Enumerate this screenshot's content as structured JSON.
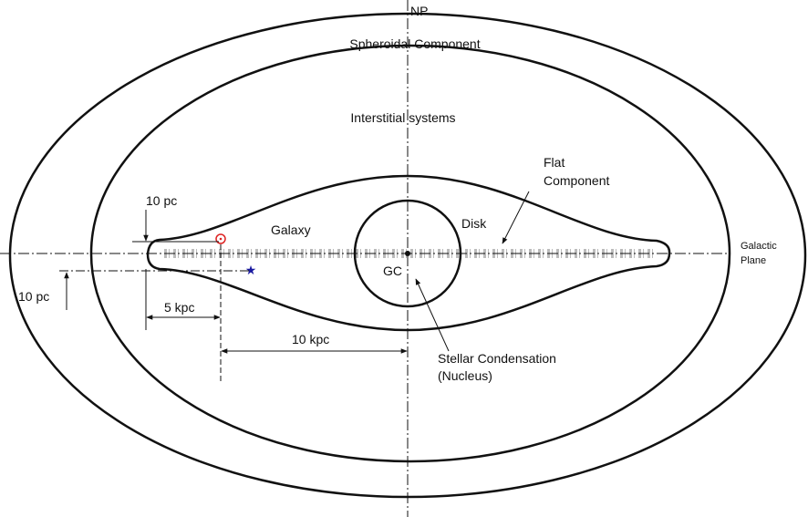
{
  "labels": {
    "np": "NP",
    "spheroidal": "Spheroidal Component",
    "interstitial": "Interstitial systems",
    "flat": [
      "Flat",
      "Component"
    ],
    "galaxy": "Galaxy",
    "disk": "Disk",
    "gc": "GC",
    "pc_upper": "10 pc",
    "pc_lower": "10 pc",
    "kpc5": "5 kpc",
    "kpc10": "10 kpc",
    "nucleus": [
      "Stellar Condensation",
      "(Nucleus)"
    ],
    "plane": [
      "Galactic",
      "Plane"
    ]
  }
}
